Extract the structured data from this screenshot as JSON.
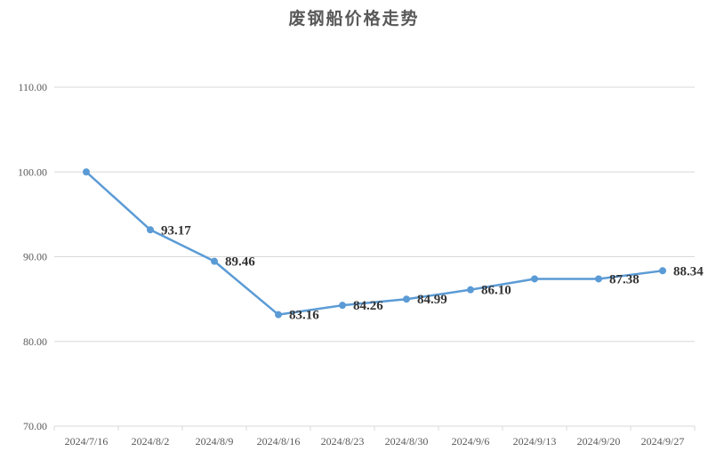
{
  "chart_data": {
    "type": "line",
    "title": "废钢船价格走势",
    "xlabel": "",
    "ylabel": "",
    "categories": [
      "2024/7/16",
      "2024/8/2",
      "2024/8/9",
      "2024/8/16",
      "2024/8/23",
      "2024/8/30",
      "2024/9/6",
      "2024/9/13",
      "2024/9/20",
      "2024/9/27"
    ],
    "series": [
      {
        "values": [
          100.0,
          93.17,
          89.46,
          83.16,
          84.26,
          84.99,
          86.1,
          87.38,
          87.38,
          88.34
        ],
        "labels": [
          "",
          "93.17",
          "89.46",
          "83.16",
          "84.26",
          "84.99",
          "86.10",
          "",
          "87.38",
          "88.34"
        ]
      }
    ],
    "ylim": [
      70,
      110
    ],
    "yticks": [
      "70.00",
      "80.00",
      "90.00",
      "100.00",
      "110.00"
    ],
    "grid": true,
    "legend": "none",
    "colors": {
      "line": "#5b9bd5",
      "grid": "#d9d9d9"
    }
  }
}
